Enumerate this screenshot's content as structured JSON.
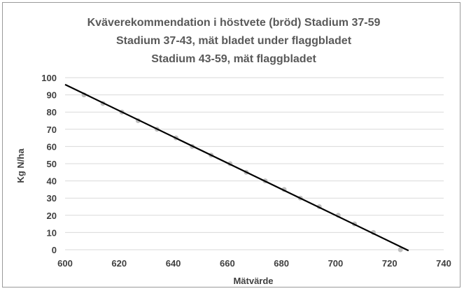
{
  "chart_data": {
    "type": "scatter",
    "title": [
      "Kväverekommendation i höstvete (bröd) Stadium 37-59",
      "Stadium 37-43, mät bladet under flaggbladet",
      "Stadium 43-59, mät flaggbladet"
    ],
    "xlabel": "Mätvärde",
    "ylabel": "Kg N/ha",
    "xlim": [
      600,
      740
    ],
    "ylim": [
      0,
      100
    ],
    "xticks": [
      600,
      620,
      640,
      660,
      680,
      700,
      720,
      740
    ],
    "yticks": [
      0,
      10,
      20,
      30,
      40,
      50,
      60,
      70,
      80,
      90,
      100
    ],
    "grid": "horizontal",
    "series": [
      {
        "points": [
          [
            607,
            90
          ],
          [
            614,
            85
          ],
          [
            621,
            80
          ],
          [
            627,
            75
          ],
          [
            634,
            70
          ],
          [
            641,
            65
          ],
          [
            647,
            60
          ],
          [
            654,
            55
          ],
          [
            661,
            50
          ],
          [
            667,
            45
          ],
          [
            674,
            40
          ],
          [
            681,
            35
          ],
          [
            687,
            30
          ],
          [
            694,
            25
          ],
          [
            701,
            20
          ],
          [
            707,
            15
          ],
          [
            714,
            10
          ],
          [
            724,
            0
          ]
        ],
        "color": "#bfbfbf"
      }
    ],
    "trendline": {
      "x": [
        600,
        727
      ],
      "y": [
        96,
        -0.5
      ],
      "color": "#000000"
    }
  }
}
